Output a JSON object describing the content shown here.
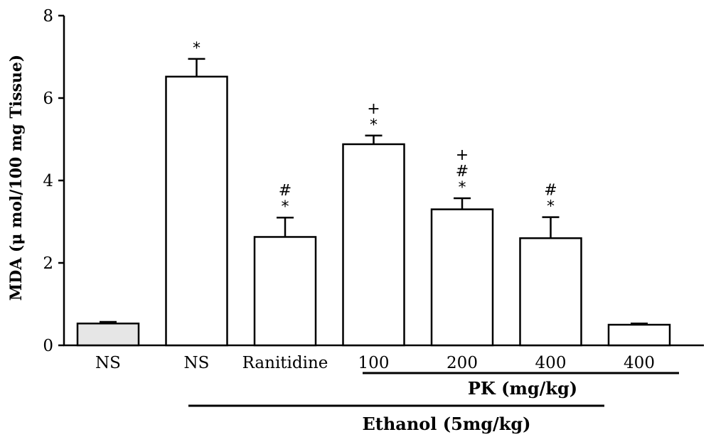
{
  "chart_data": {
    "type": "bar",
    "ylabel": "MDA (μ mol/100 mg Tissue)",
    "xlabel": "",
    "ylim": [
      0,
      8
    ],
    "yticks": [
      0,
      2,
      4,
      6,
      8
    ],
    "categories": [
      "NS",
      "NS",
      "Ranitidine",
      "100",
      "200",
      "400",
      "400"
    ],
    "values": [
      0.53,
      6.52,
      2.63,
      4.88,
      3.3,
      2.6,
      0.5
    ],
    "errors": [
      0.04,
      0.43,
      0.47,
      0.21,
      0.27,
      0.51,
      0.03
    ],
    "bar_fill": [
      "#e6e6e6",
      "#ffffff",
      "#ffffff",
      "#ffffff",
      "#ffffff",
      "#ffffff",
      "#ffffff"
    ],
    "annotations": [
      [],
      [
        "*"
      ],
      [
        "*",
        "#"
      ],
      [
        "*",
        "+"
      ],
      [
        "*",
        "#",
        "+"
      ],
      [
        "*",
        "#"
      ],
      []
    ],
    "group_labels": {
      "pk": "PK (mg/kg)",
      "ethanol": "Ethanol (5mg/kg)"
    },
    "grid": false,
    "legend": "none"
  }
}
